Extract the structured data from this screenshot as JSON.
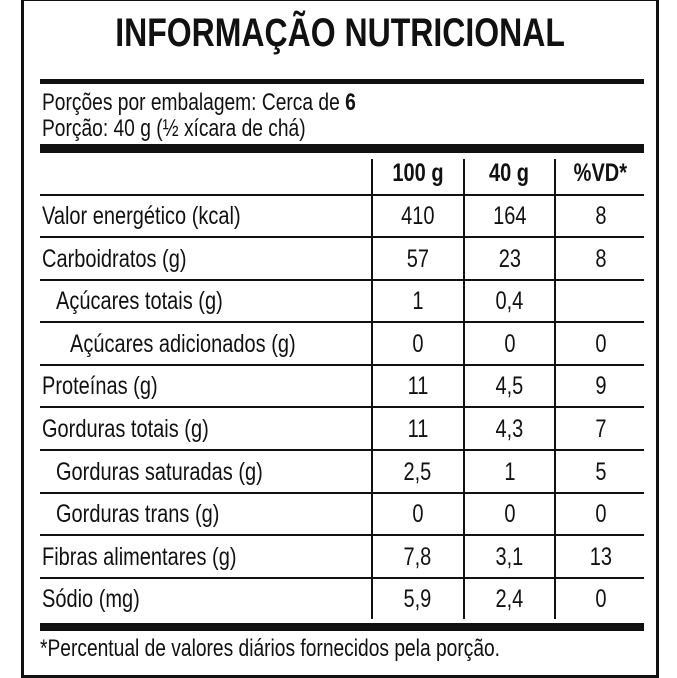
{
  "title": "INFORMAÇÃO NUTRICIONAL",
  "servings_per_package_label": "Porções por embalagem: Cerca de",
  "servings_per_package_value": "6",
  "serving_size": "Porção: 40 g (½ xícara de chá)",
  "columns": [
    "100 g",
    "40 g",
    "%VD*"
  ],
  "rows": [
    {
      "label": "Valor energético (kcal)",
      "indent": 0,
      "values": [
        "410",
        "164",
        "8"
      ]
    },
    {
      "label": "Carboidratos (g)",
      "indent": 0,
      "values": [
        "57",
        "23",
        "8"
      ]
    },
    {
      "label": "Açúcares totais (g)",
      "indent": 1,
      "values": [
        "1",
        "0,4",
        ""
      ]
    },
    {
      "label": "Açúcares adicionados (g)",
      "indent": 2,
      "values": [
        "0",
        "0",
        "0"
      ]
    },
    {
      "label": "Proteínas (g)",
      "indent": 0,
      "values": [
        "11",
        "4,5",
        "9"
      ]
    },
    {
      "label": "Gorduras totais (g)",
      "indent": 0,
      "values": [
        "11",
        "4,3",
        "7"
      ]
    },
    {
      "label": "Gorduras saturadas (g)",
      "indent": 1,
      "values": [
        "2,5",
        "1",
        "5"
      ]
    },
    {
      "label": "Gorduras trans (g)",
      "indent": 1,
      "values": [
        "0",
        "0",
        "0"
      ]
    },
    {
      "label": "Fibras alimentares (g)",
      "indent": 0,
      "values": [
        "7,8",
        "3,1",
        "13"
      ]
    },
    {
      "label": "Sódio (mg)",
      "indent": 0,
      "values": [
        "5,9",
        "2,4",
        "0"
      ]
    }
  ],
  "footnote": "*Percentual de valores diários fornecidos pela porção."
}
